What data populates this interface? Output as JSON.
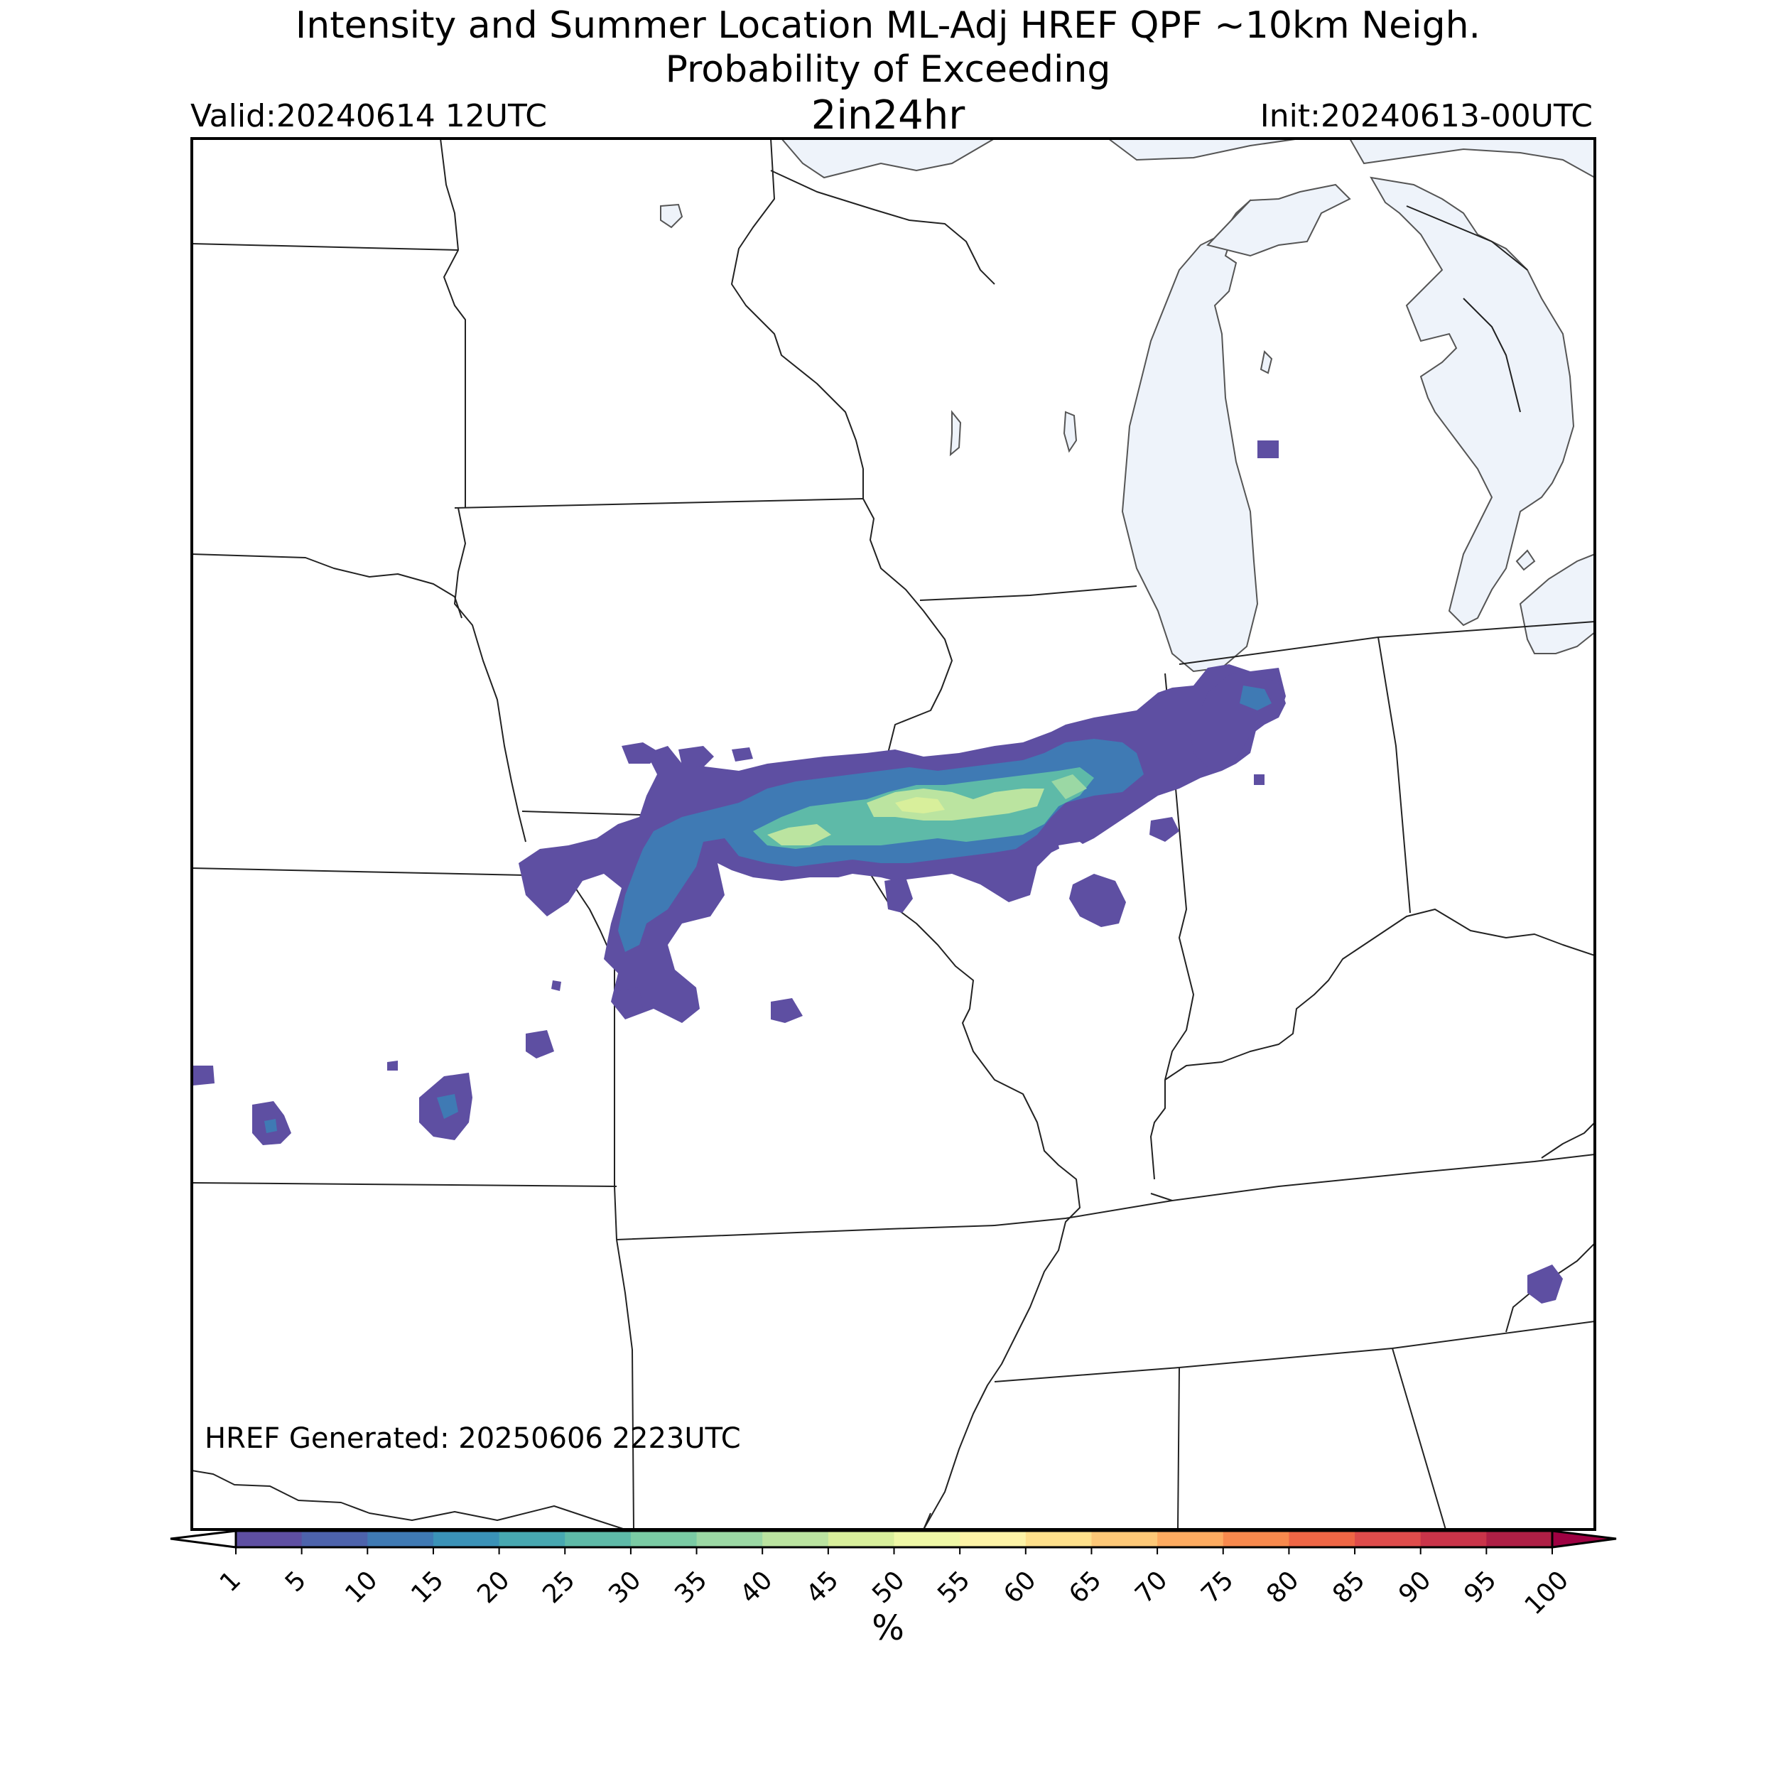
{
  "header": {
    "title_line1": "Intensity and Summer Location ML-Adj HREF QPF ~10km Neigh.",
    "title_line2": "Probability of Exceeding",
    "threshold": "2in24hr",
    "valid": "Valid:20240614 12UTC",
    "init": "Init:20240613-00UTC"
  },
  "map": {
    "generated_label": "HREF Generated: 20250606 2223UTC",
    "lake_color": "#eef3fa",
    "border_color": "#222222"
  },
  "colorbar": {
    "unit": "%",
    "ticks": [
      "1",
      "5",
      "10",
      "15",
      "20",
      "25",
      "30",
      "35",
      "40",
      "45",
      "50",
      "55",
      "60",
      "65",
      "70",
      "75",
      "80",
      "85",
      "90",
      "95",
      "100"
    ],
    "colors": [
      "#5e4fa2",
      "#4d63ac",
      "#3f7ab4",
      "#3a92b8",
      "#47a8b1",
      "#5ebaa8",
      "#7acba4",
      "#9bd8a4",
      "#bbe4a0",
      "#d8ef9b",
      "#eff8a6",
      "#fdf3a6",
      "#fee08b",
      "#fdc877",
      "#fdab60",
      "#f8894d",
      "#ef6645",
      "#de4c4b",
      "#c93449",
      "#ae1f45"
    ],
    "under_color": "#ffffff",
    "over_color": "#9e0142"
  }
}
